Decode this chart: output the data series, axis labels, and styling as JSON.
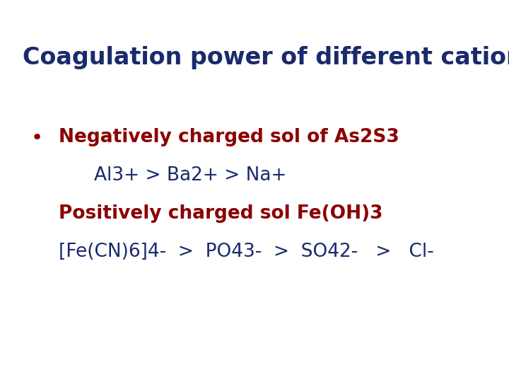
{
  "title": "Coagulation power of different cations",
  "title_color": "#1a2a6c",
  "title_fontsize": 24,
  "title_weight": "bold",
  "bg_color": "#ffffff",
  "bullet_color": "#8b0000",
  "line1_text": "Negatively charged sol of As2S3",
  "line1_color": "#8b0000",
  "line1_fontsize": 19,
  "line1_weight": "bold",
  "line2_color": "#1a2a6c",
  "line2_fontsize": 19,
  "line3_text": "Positively charged sol Fe(OH)3",
  "line3_color": "#8b0000",
  "line3_fontsize": 19,
  "line3_weight": "bold",
  "line4_color": "#1a2a6c",
  "line4_fontsize": 19
}
